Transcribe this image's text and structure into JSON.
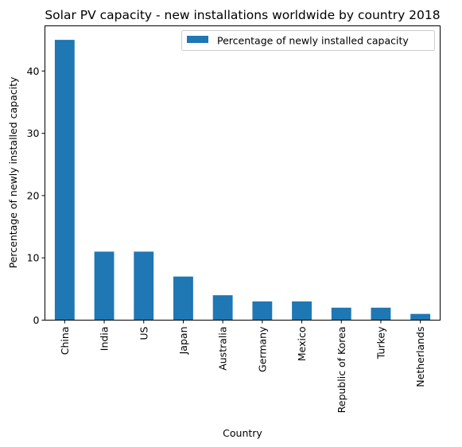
{
  "chart_data": {
    "type": "bar",
    "title": "Solar PV capacity - new installations worldwide by country 2018",
    "xlabel": "Country",
    "ylabel": "Percentage of newly installed capacity",
    "categories": [
      "China",
      "India",
      "US",
      "Japan",
      "Australia",
      "Germany",
      "Mexico",
      "Republic of Korea",
      "Turkey",
      "Netherlands"
    ],
    "series": [
      {
        "name": "Percentage of newly installed capacity",
        "values": [
          45,
          11,
          11,
          7,
          4,
          3,
          3,
          2,
          2,
          1
        ],
        "color": "#1f77b4"
      }
    ],
    "ylim": [
      0,
      47.25
    ],
    "yticks": [
      0,
      10,
      20,
      30,
      40
    ],
    "grid": false,
    "legend_position": "top-right"
  }
}
